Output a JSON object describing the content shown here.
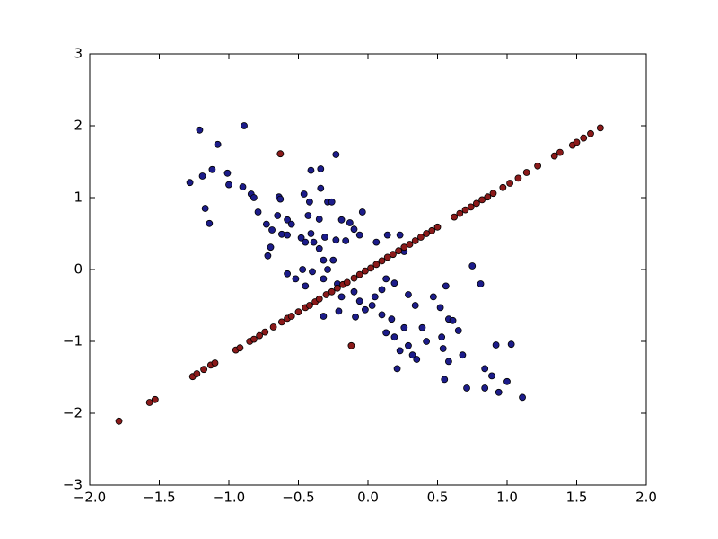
{
  "chart_data": {
    "type": "scatter",
    "xlim": [
      -2,
      2
    ],
    "ylim": [
      -3,
      3
    ],
    "xticks": [
      {
        "value": -2,
        "label": "−2.0"
      },
      {
        "value": -1.5,
        "label": "−1.5"
      },
      {
        "value": -1,
        "label": "−1.0"
      },
      {
        "value": -0.5,
        "label": "−0.5"
      },
      {
        "value": 0,
        "label": "0.0"
      },
      {
        "value": 0.5,
        "label": "0.5"
      },
      {
        "value": 1,
        "label": "1.0"
      },
      {
        "value": 1.5,
        "label": "1.5"
      },
      {
        "value": 2,
        "label": "2.0"
      }
    ],
    "yticks": [
      {
        "value": -3,
        "label": "−3"
      },
      {
        "value": -2,
        "label": "−2"
      },
      {
        "value": -1,
        "label": "−1"
      },
      0,
      1,
      2,
      3
    ],
    "series": [
      {
        "color": "#1c1c8a",
        "x": [
          -1.21,
          -0.89,
          -1.08,
          -1.28,
          -1.19,
          -1.12,
          -1.01,
          -1.0,
          -0.9,
          -0.84,
          -1.17,
          -1.14,
          -0.82,
          -0.79,
          -0.73,
          -0.69,
          -0.64,
          -0.63,
          -0.65,
          -0.58,
          -0.55,
          -0.62,
          -0.58,
          -0.7,
          -0.72,
          -0.41,
          -0.34,
          -0.23,
          -0.34,
          -0.46,
          -0.42,
          -0.29,
          -0.26,
          -0.43,
          -0.35,
          -0.41,
          -0.48,
          -0.45,
          -0.39,
          -0.35,
          -0.31,
          -0.23,
          -0.19,
          -0.13,
          -0.1,
          -0.04,
          -0.06,
          -0.16,
          -0.25,
          -0.29,
          -0.32,
          -0.47,
          -0.4,
          -0.58,
          -0.52,
          -0.45,
          -0.32,
          -0.22,
          -0.21,
          -0.32,
          -0.19,
          -0.1,
          -0.06,
          -0.09,
          -0.02,
          0.03,
          0.05,
          0.1,
          0.13,
          0.19,
          0.23,
          0.14,
          0.06,
          0.26,
          0.1,
          0.17,
          0.19,
          0.13,
          0.23,
          0.29,
          0.32,
          0.35,
          0.26,
          0.39,
          0.34,
          0.29,
          0.47,
          0.52,
          0.58,
          0.61,
          0.53,
          0.65,
          0.54,
          0.58,
          0.68,
          0.55,
          0.75,
          0.81,
          0.71,
          0.84,
          0.89,
          0.84,
          0.92,
          1.03,
          1.0,
          0.94,
          1.11,
          0.21,
          0.42,
          0.56
        ],
        "values": [
          1.94,
          2.0,
          1.74,
          1.21,
          1.3,
          1.39,
          1.34,
          1.18,
          1.15,
          1.05,
          0.85,
          0.64,
          1.0,
          0.8,
          0.63,
          0.55,
          1.01,
          0.98,
          0.75,
          0.69,
          0.63,
          0.49,
          0.48,
          0.31,
          0.19,
          1.38,
          1.4,
          1.6,
          1.13,
          1.05,
          0.94,
          0.94,
          0.94,
          0.75,
          0.7,
          0.5,
          0.44,
          0.38,
          0.38,
          0.29,
          0.45,
          0.41,
          0.69,
          0.65,
          0.56,
          0.8,
          0.48,
          0.4,
          0.13,
          0.0,
          0.13,
          0.0,
          -0.03,
          -0.06,
          -0.13,
          -0.23,
          -0.13,
          -0.2,
          -0.58,
          -0.65,
          -0.38,
          -0.31,
          -0.44,
          -0.66,
          -0.56,
          -0.5,
          -0.38,
          -0.28,
          -0.13,
          -0.19,
          0.48,
          0.48,
          0.38,
          0.25,
          -0.63,
          -0.69,
          -0.94,
          -0.88,
          -1.13,
          -1.06,
          -1.19,
          -1.25,
          -0.81,
          -0.81,
          -0.5,
          -0.35,
          -0.38,
          -0.53,
          -0.69,
          -0.71,
          -0.94,
          -0.85,
          -1.1,
          -1.28,
          -1.19,
          -1.53,
          0.05,
          -0.2,
          -1.65,
          -1.38,
          -1.48,
          -1.65,
          -1.05,
          -1.04,
          -1.56,
          -1.71,
          -1.78,
          -1.38,
          -1.0,
          -0.23
        ]
      },
      {
        "color": "#8b1a1a",
        "x": [
          -1.79,
          -1.57,
          -1.53,
          -1.26,
          -1.23,
          -1.18,
          -1.13,
          -1.1,
          -0.95,
          -0.92,
          -0.85,
          -0.82,
          -0.78,
          -0.74,
          -0.68,
          -0.62,
          -0.58,
          -0.55,
          -0.5,
          -0.45,
          -0.42,
          -0.38,
          -0.35,
          -0.3,
          -0.26,
          -0.22,
          -0.18,
          -0.15,
          -0.1,
          -0.06,
          -0.02,
          0.02,
          0.06,
          0.1,
          0.14,
          0.18,
          0.22,
          0.26,
          0.3,
          0.34,
          0.38,
          0.42,
          0.46,
          0.5,
          0.62,
          0.66,
          0.7,
          0.74,
          0.78,
          0.82,
          0.86,
          0.9,
          0.97,
          1.02,
          1.08,
          1.14,
          1.22,
          1.34,
          1.38,
          1.47,
          1.5,
          1.55,
          1.6,
          1.67,
          -0.63,
          -0.12
        ],
        "values": [
          -2.11,
          -1.85,
          -1.81,
          -1.49,
          -1.45,
          -1.39,
          -1.33,
          -1.3,
          -1.12,
          -1.09,
          -1.0,
          -0.97,
          -0.92,
          -0.87,
          -0.8,
          -0.73,
          -0.68,
          -0.65,
          -0.59,
          -0.53,
          -0.5,
          -0.45,
          -0.41,
          -0.35,
          -0.31,
          -0.26,
          -0.21,
          -0.18,
          -0.12,
          -0.07,
          -0.02,
          0.02,
          0.07,
          0.12,
          0.17,
          0.21,
          0.26,
          0.31,
          0.35,
          0.4,
          0.45,
          0.5,
          0.54,
          0.59,
          0.73,
          0.78,
          0.83,
          0.87,
          0.92,
          0.97,
          1.01,
          1.06,
          1.14,
          1.2,
          1.27,
          1.35,
          1.44,
          1.58,
          1.63,
          1.73,
          1.77,
          1.83,
          1.89,
          1.97,
          1.61,
          -1.06
        ]
      }
    ]
  }
}
